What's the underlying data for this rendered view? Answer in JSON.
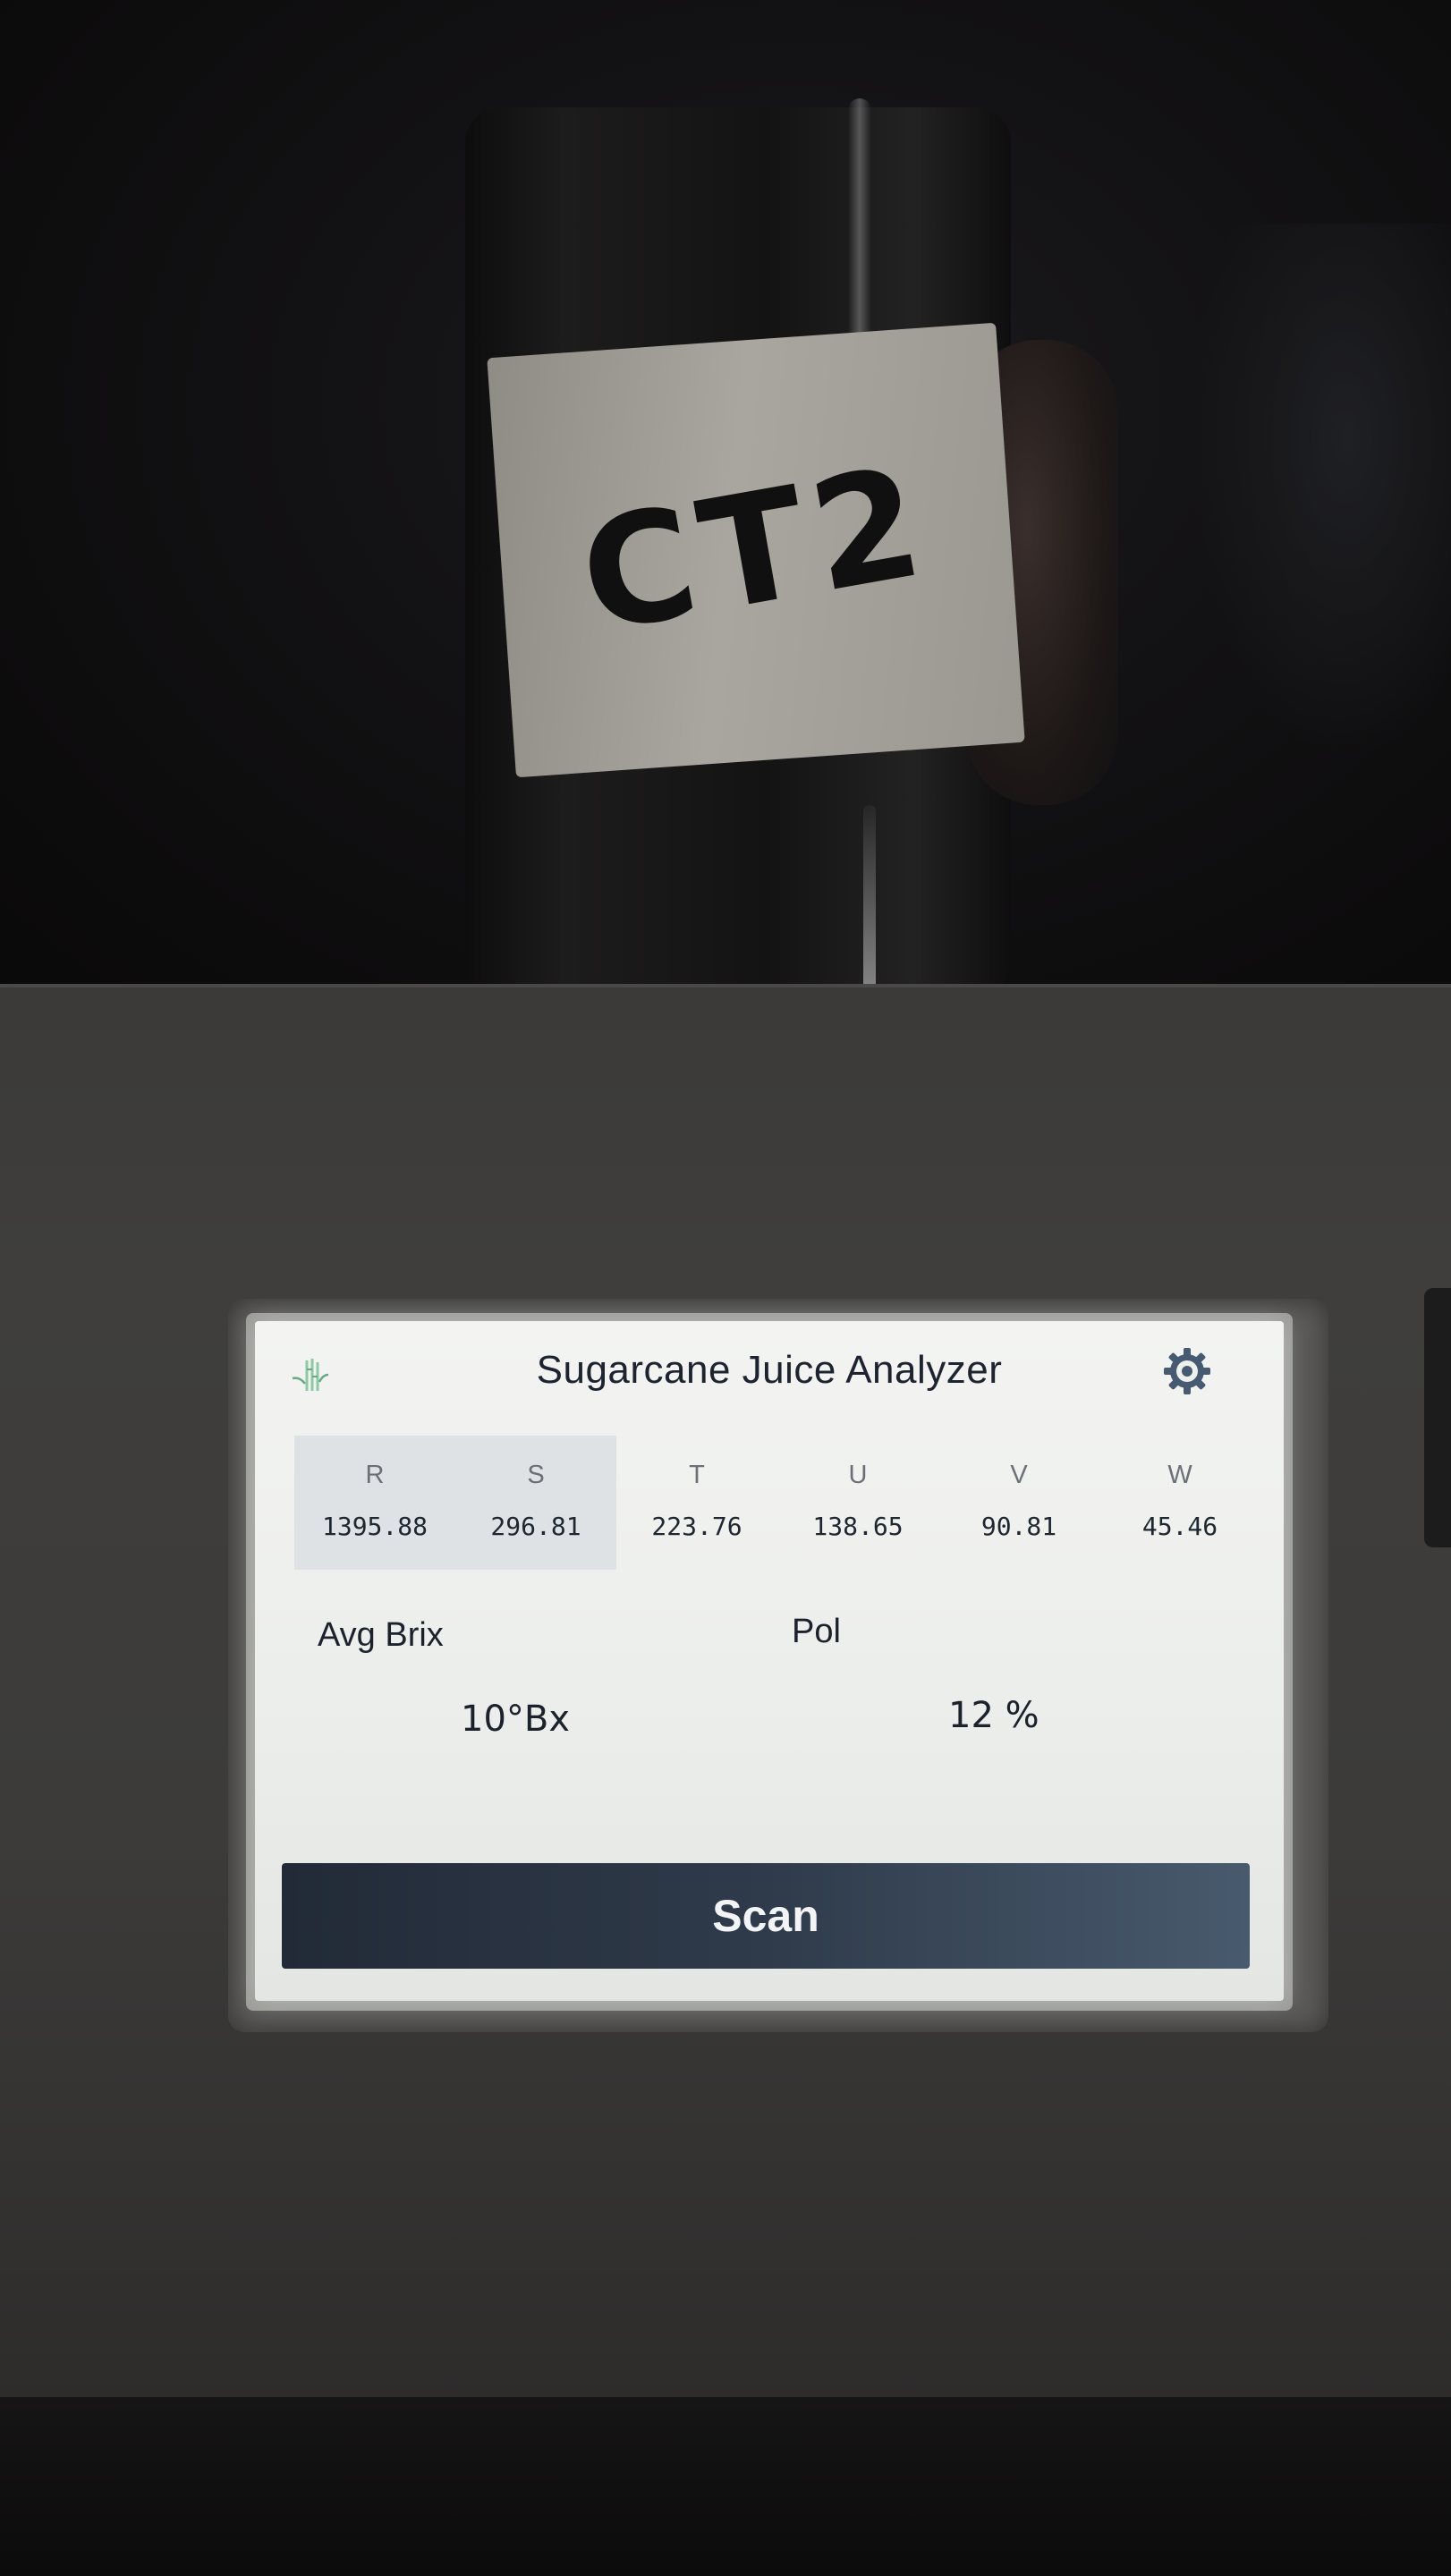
{
  "sample": {
    "label": "CT2"
  },
  "app": {
    "title": "Sugarcane Juice Analyzer",
    "logo_icon": "sugarcane-icon",
    "settings_icon": "gear-icon"
  },
  "channels": [
    {
      "letter": "R",
      "value": "1395.88"
    },
    {
      "letter": "S",
      "value": "296.81"
    },
    {
      "letter": "T",
      "value": "223.76"
    },
    {
      "letter": "U",
      "value": "138.65"
    },
    {
      "letter": "V",
      "value": "90.81"
    },
    {
      "letter": "W",
      "value": "45.46"
    }
  ],
  "results": {
    "brix_label": "Avg Brix",
    "brix_value": "10°Bx",
    "pol_label": "Pol",
    "pol_value": "12 %"
  },
  "actions": {
    "scan_label": "Scan"
  },
  "colors": {
    "accent": "#2f3b4b",
    "logo_green": "#8cc9a4",
    "screen_bg": "#f0f1ef"
  }
}
